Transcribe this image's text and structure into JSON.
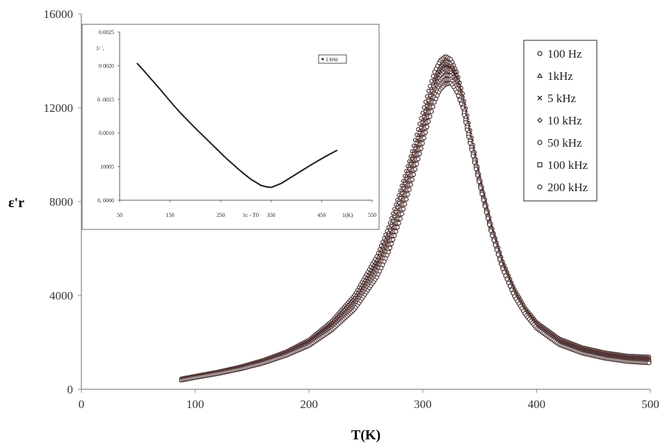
{
  "chart_data": [
    {
      "type": "scatter",
      "xlabel": "T(K)",
      "ylabel": "ε'r",
      "xlim": [
        0,
        500
      ],
      "ylim": [
        0,
        16000
      ],
      "xticks": [
        "0",
        "100",
        "200",
        "300",
        "400",
        "500"
      ],
      "yticks": [
        "0",
        "4000",
        "8000",
        "12000",
        "16000"
      ],
      "legend_position": "top-right",
      "grid": false,
      "x": [
        88,
        100,
        120,
        140,
        160,
        180,
        200,
        220,
        240,
        260,
        270,
        280,
        290,
        300,
        305,
        310,
        315,
        320,
        325,
        330,
        335,
        340,
        350,
        360,
        370,
        380,
        390,
        400,
        420,
        440,
        460,
        480,
        500
      ],
      "series": [
        {
          "name": "100 Hz",
          "marker": "circle",
          "values": [
            450,
            560,
            740,
            960,
            1240,
            1600,
            2100,
            2900,
            4000,
            5700,
            6900,
            8400,
            10000,
            11800,
            12700,
            13500,
            14000,
            14200,
            14050,
            13500,
            12600,
            11400,
            9000,
            7000,
            5450,
            4300,
            3450,
            2850,
            2150,
            1780,
            1560,
            1420,
            1380
          ]
        },
        {
          "name": "1kHz",
          "marker": "triangle",
          "values": [
            440,
            550,
            730,
            945,
            1220,
            1570,
            2060,
            2830,
            3900,
            5550,
            6700,
            8200,
            9800,
            11500,
            12400,
            13200,
            13750,
            14000,
            13900,
            13400,
            12500,
            11300,
            8950,
            6950,
            5400,
            4250,
            3400,
            2800,
            2100,
            1740,
            1520,
            1380,
            1330
          ]
        },
        {
          "name": "5 kHz",
          "marker": "x",
          "values": [
            430,
            540,
            715,
            930,
            1200,
            1545,
            2020,
            2760,
            3800,
            5400,
            6500,
            8000,
            9600,
            11300,
            12200,
            13000,
            13550,
            13800,
            13700,
            13250,
            12400,
            11200,
            8900,
            6900,
            5350,
            4200,
            3360,
            2760,
            2060,
            1700,
            1480,
            1340,
            1290
          ]
        },
        {
          "name": "10 kHz",
          "marker": "diamond",
          "values": [
            420,
            530,
            700,
            915,
            1180,
            1520,
            1980,
            2700,
            3700,
            5250,
            6330,
            7800,
            9400,
            11100,
            12000,
            12800,
            13350,
            13600,
            13500,
            13100,
            12300,
            11100,
            8850,
            6850,
            5300,
            4150,
            3320,
            2720,
            2020,
            1660,
            1440,
            1300,
            1250
          ]
        },
        {
          "name": "50 kHz",
          "marker": "circle",
          "values": [
            410,
            520,
            690,
            900,
            1160,
            1495,
            1940,
            2640,
            3600,
            5100,
            6150,
            7600,
            9200,
            10900,
            11800,
            12600,
            13150,
            13400,
            13350,
            12950,
            12200,
            11000,
            8800,
            6800,
            5250,
            4100,
            3280,
            2680,
            1980,
            1620,
            1400,
            1260,
            1200
          ]
        },
        {
          "name": "100 kHz",
          "marker": "square",
          "values": [
            400,
            510,
            680,
            885,
            1140,
            1470,
            1900,
            2580,
            3500,
            4950,
            6000,
            7400,
            9000,
            10700,
            11600,
            12400,
            12950,
            13200,
            13200,
            12800,
            12100,
            10900,
            8750,
            6750,
            5200,
            4050,
            3240,
            2640,
            1940,
            1580,
            1360,
            1220,
            1160
          ]
        },
        {
          "name": "200 kHz",
          "marker": "circle",
          "values": [
            390,
            500,
            670,
            870,
            1120,
            1445,
            1860,
            2520,
            3400,
            4800,
            5850,
            7200,
            8800,
            10500,
            11400,
            12200,
            12750,
            13000,
            13050,
            12650,
            12000,
            10800,
            8700,
            6700,
            5150,
            4000,
            3200,
            2600,
            1900,
            1540,
            1320,
            1180,
            1120
          ]
        }
      ]
    },
    {
      "type": "scatter",
      "inset": true,
      "ylabel": "1/ ',",
      "xlim": [
        50,
        550
      ],
      "ylim": [
        0.0,
        0.0025
      ],
      "xticks": [
        "50",
        "150",
        "250",
        "350",
        "450",
        "550"
      ],
      "yticks": [
        "0, 0000",
        "10005",
        "0.0010",
        "0 .0015",
        "0 0020",
        "0.0025"
      ],
      "xlabel_texts": [
        "1c - T0",
        "1(K)"
      ],
      "legend_position": "top-right",
      "x": [
        85,
        95,
        110,
        130,
        150,
        170,
        200,
        230,
        260,
        290,
        310,
        330,
        340,
        350,
        370,
        400,
        430,
        460,
        480
      ],
      "series": [
        {
          "name": "1 kHz",
          "values": [
            0.00203,
            0.00195,
            0.00182,
            0.00165,
            0.00147,
            0.0013,
            0.00107,
            0.00085,
            0.00063,
            0.00043,
            0.00031,
            0.00022,
            0.0002,
            0.00019,
            0.00025,
            0.00039,
            0.00053,
            0.00066,
            0.00074
          ]
        }
      ]
    }
  ]
}
